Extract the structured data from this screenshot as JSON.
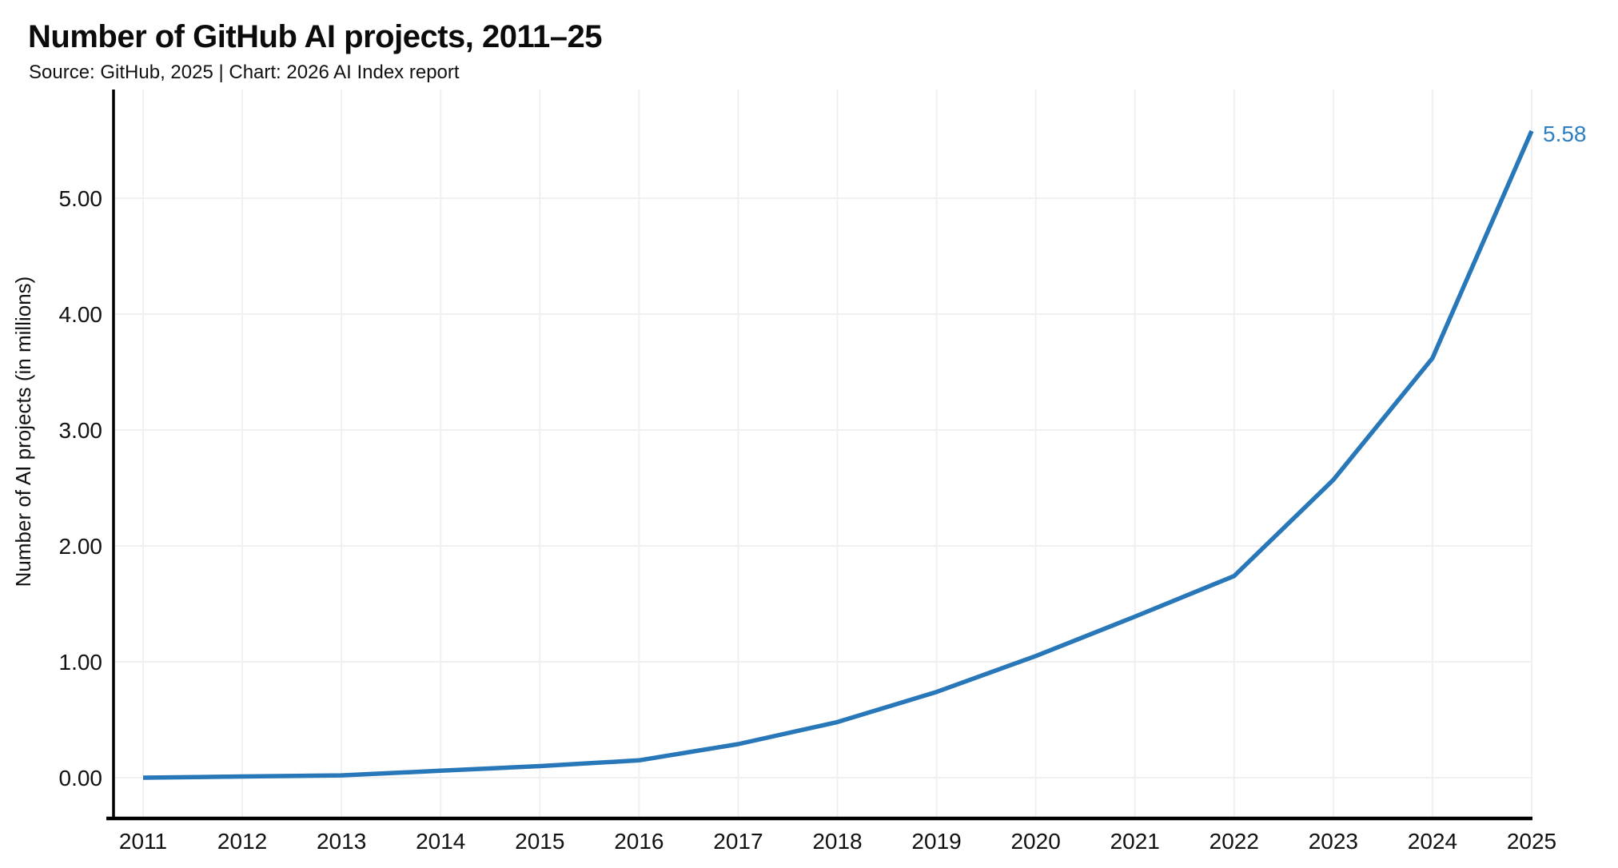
{
  "header": {
    "title": "Number of GitHub AI projects, 2011–25",
    "subtitle": "Source: GitHub, 2025 | Chart: 2026 AI Index report"
  },
  "chart_data": {
    "type": "line",
    "title": "Number of GitHub AI projects, 2011–25",
    "source_note": "Source: GitHub, 2025 | Chart: 2026 AI Index report",
    "categories": [
      "2011",
      "2012",
      "2013",
      "2014",
      "2015",
      "2016",
      "2017",
      "2018",
      "2019",
      "2020",
      "2021",
      "2022",
      "2023",
      "2024",
      "2025"
    ],
    "series": [
      {
        "name": "Number of AI projects (in millions)",
        "values": [
          0.0,
          0.01,
          0.02,
          0.06,
          0.1,
          0.15,
          0.29,
          0.48,
          0.74,
          1.05,
          1.39,
          1.74,
          2.57,
          3.62,
          5.58
        ]
      }
    ],
    "xlabel": "",
    "ylabel": "Number of AI projects (in millions)",
    "ylim": [
      0,
      5.94
    ],
    "yticks": [
      0,
      1,
      2,
      3,
      4,
      5
    ],
    "ytick_labels": [
      "0.00",
      "1.00",
      "2.00",
      "3.00",
      "4.00",
      "5.00"
    ],
    "end_label": "5.58",
    "grid": true,
    "legend_position": "none",
    "colors": {
      "line": "#2777b9",
      "end_label": "#2f80c3",
      "grid": "#f0f0f0",
      "axis": "#000000",
      "text": "#111111"
    }
  }
}
